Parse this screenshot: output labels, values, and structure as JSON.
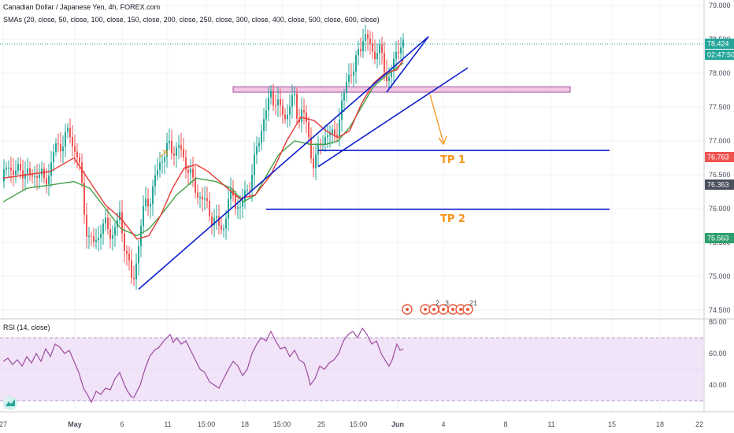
{
  "header": {
    "symbol": "Canadian Dollar / Japanese Yen, 4h, FOREX.com",
    "indicator": "SMAs (20, close, 50, close, 100, close, 150, close, 200, close, 250, close, 300, close, 400, close, 500, close, 600, close)"
  },
  "rsi_header": "RSI (14, close)",
  "price_tags": {
    "current": "78.424",
    "countdown": "02:47:50",
    "red": "76.763",
    "dark": "76.363",
    "green": "75.563"
  },
  "colors": {
    "candle_up": "#26a69a",
    "candle_down": "#ef5350",
    "sma_fast": "#e53935",
    "sma_slow": "#43a047",
    "trendline": "#0d1ecc",
    "zone": "#f3c6e4",
    "tp_label": "#f7941d",
    "rsi_line": "#9c4d9e",
    "rsi_band": "#f1e3f8"
  },
  "chart_data": [
    {
      "type": "candlestick",
      "title": "Canadian Dollar / Japanese Yen, 4h, FOREX.com",
      "y_ticks": [
        "79.000",
        "78.500",
        "78.000",
        "77.500",
        "77.000",
        "76.500",
        "76.000",
        "75.500",
        "75.000",
        "74.500"
      ],
      "x_ticks": [
        "27",
        "May",
        "6",
        "11",
        "15:00",
        "18",
        "15:00",
        "25",
        "15:00",
        "Jun",
        "4",
        "8",
        "11",
        "15",
        "18",
        "22"
      ],
      "ylim": [
        74.45,
        79.1
      ],
      "grid": true,
      "annotations": [
        "TP 1",
        "TP 2"
      ],
      "close_path": [
        [
          0,
          76.4
        ],
        [
          6,
          76.7
        ],
        [
          14,
          76.5
        ],
        [
          24,
          76.6
        ],
        [
          34,
          76.45
        ],
        [
          44,
          76.55
        ],
        [
          52,
          76.4
        ],
        [
          60,
          76.6
        ],
        [
          66,
          76.9
        ],
        [
          72,
          76.95
        ],
        [
          78,
          77.0
        ],
        [
          84,
          77.15
        ],
        [
          90,
          76.9
        ],
        [
          96,
          76.7
        ],
        [
          102,
          76.1
        ],
        [
          106,
          75.7
        ],
        [
          110,
          75.5
        ],
        [
          116,
          75.5
        ],
        [
          124,
          75.7
        ],
        [
          132,
          75.75
        ],
        [
          140,
          75.6
        ],
        [
          148,
          75.9
        ],
        [
          152,
          75.6
        ],
        [
          156,
          75.4
        ],
        [
          160,
          75.1
        ],
        [
          164,
          74.9
        ],
        [
          170,
          75.3
        ],
        [
          176,
          75.8
        ],
        [
          182,
          76.2
        ],
        [
          188,
          76.1
        ],
        [
          194,
          76.5
        ],
        [
          200,
          76.75
        ],
        [
          206,
          76.8
        ],
        [
          212,
          76.95
        ],
        [
          218,
          76.85
        ],
        [
          224,
          76.9
        ],
        [
          230,
          76.7
        ],
        [
          236,
          76.6
        ],
        [
          242,
          76.3
        ],
        [
          250,
          76.2
        ],
        [
          258,
          76.05
        ],
        [
          264,
          75.9
        ],
        [
          270,
          75.8
        ],
        [
          276,
          75.7
        ],
        [
          280,
          75.75
        ],
        [
          286,
          76.1
        ],
        [
          292,
          76.2
        ],
        [
          298,
          76.05
        ],
        [
          302,
          75.95
        ],
        [
          306,
          76.2
        ],
        [
          312,
          76.35
        ],
        [
          318,
          76.6
        ],
        [
          324,
          77.0
        ],
        [
          330,
          77.3
        ],
        [
          336,
          77.5
        ],
        [
          340,
          77.7
        ],
        [
          346,
          77.6
        ],
        [
          352,
          77.45
        ],
        [
          358,
          77.35
        ],
        [
          364,
          77.55
        ],
        [
          370,
          77.6
        ],
        [
          374,
          77.35
        ],
        [
          380,
          77.45
        ],
        [
          386,
          77.2
        ],
        [
          390,
          76.85
        ],
        [
          394,
          76.7
        ],
        [
          398,
          76.75
        ],
        [
          404,
          77.0
        ],
        [
          410,
          77.1
        ],
        [
          416,
          77.05
        ],
        [
          420,
          77.1
        ],
        [
          426,
          77.25
        ],
        [
          432,
          77.6
        ],
        [
          436,
          77.9
        ],
        [
          440,
          78.05
        ],
        [
          446,
          78.0
        ],
        [
          452,
          78.4
        ],
        [
          458,
          78.55
        ],
        [
          464,
          78.45
        ],
        [
          470,
          78.3
        ],
        [
          476,
          78.35
        ],
        [
          482,
          78.2
        ],
        [
          488,
          77.9
        ],
        [
          494,
          78.05
        ],
        [
          500,
          78.3
        ],
        [
          504,
          78.5
        ],
        [
          508,
          78.42
        ]
      ],
      "sma_fast": [
        [
          0,
          76.45
        ],
        [
          30,
          76.5
        ],
        [
          60,
          76.55
        ],
        [
          90,
          76.75
        ],
        [
          110,
          76.4
        ],
        [
          130,
          76.05
        ],
        [
          150,
          75.85
        ],
        [
          170,
          75.55
        ],
        [
          185,
          75.6
        ],
        [
          200,
          75.9
        ],
        [
          215,
          76.3
        ],
        [
          230,
          76.6
        ],
        [
          245,
          76.65
        ],
        [
          260,
          76.55
        ],
        [
          280,
          76.35
        ],
        [
          300,
          76.15
        ],
        [
          320,
          76.2
        ],
        [
          340,
          76.5
        ],
        [
          360,
          77.0
        ],
        [
          378,
          77.35
        ],
        [
          395,
          77.3
        ],
        [
          410,
          77.15
        ],
        [
          425,
          77.05
        ],
        [
          440,
          77.15
        ],
        [
          455,
          77.55
        ],
        [
          470,
          77.85
        ],
        [
          485,
          78.0
        ],
        [
          500,
          78.05
        ],
        [
          508,
          78.2
        ]
      ],
      "sma_slow": [
        [
          0,
          76.1
        ],
        [
          30,
          76.3
        ],
        [
          60,
          76.35
        ],
        [
          90,
          76.4
        ],
        [
          110,
          76.3
        ],
        [
          130,
          76.0
        ],
        [
          150,
          75.7
        ],
        [
          170,
          75.6
        ],
        [
          185,
          75.7
        ],
        [
          200,
          75.9
        ],
        [
          220,
          76.2
        ],
        [
          245,
          76.45
        ],
        [
          270,
          76.4
        ],
        [
          290,
          76.3
        ],
        [
          305,
          76.1
        ],
        [
          320,
          76.2
        ],
        [
          335,
          76.5
        ],
        [
          350,
          76.8
        ],
        [
          370,
          77.0
        ],
        [
          390,
          76.95
        ],
        [
          410,
          76.95
        ],
        [
          425,
          77.0
        ],
        [
          440,
          77.2
        ],
        [
          455,
          77.5
        ],
        [
          470,
          77.8
        ],
        [
          490,
          78.0
        ],
        [
          508,
          78.15
        ]
      ],
      "trendlines": [
        {
          "from": [
            172,
            74.81
          ],
          "to": [
            540,
            78.54
          ]
        },
        {
          "from": [
            400,
            76.62
          ],
          "to": [
            590,
            78.08
          ]
        },
        {
          "from": [
            487,
            77.72
          ],
          "to": [
            540,
            78.54
          ]
        }
      ],
      "resistance_zone": {
        "x_from": 292,
        "x_to": 720,
        "y_low": 77.72,
        "y_high": 77.8
      },
      "tp1": {
        "x_from": 400,
        "x_to": 770,
        "y": 76.86
      },
      "tp2": {
        "x_from": 334,
        "x_to": 770,
        "y": 75.99
      }
    },
    {
      "type": "line",
      "title": "RSI (14, close)",
      "y_ticks": [
        "80.00",
        "60.00",
        "40.00"
      ],
      "ylim": [
        22,
        82
      ],
      "band": [
        30,
        70
      ],
      "values": [
        [
          0,
          55
        ],
        [
          6,
          57
        ],
        [
          12,
          53
        ],
        [
          18,
          56
        ],
        [
          24,
          52
        ],
        [
          30,
          58
        ],
        [
          36,
          54
        ],
        [
          42,
          60
        ],
        [
          48,
          55
        ],
        [
          54,
          63
        ],
        [
          60,
          58
        ],
        [
          66,
          66
        ],
        [
          72,
          64
        ],
        [
          78,
          60
        ],
        [
          84,
          62
        ],
        [
          90,
          55
        ],
        [
          96,
          48
        ],
        [
          102,
          38
        ],
        [
          108,
          33
        ],
        [
          112,
          29
        ],
        [
          118,
          36
        ],
        [
          124,
          34
        ],
        [
          130,
          38
        ],
        [
          136,
          37
        ],
        [
          142,
          44
        ],
        [
          148,
          48
        ],
        [
          154,
          40
        ],
        [
          158,
          36
        ],
        [
          162,
          33
        ],
        [
          166,
          32
        ],
        [
          170,
          36
        ],
        [
          174,
          40
        ],
        [
          180,
          50
        ],
        [
          186,
          58
        ],
        [
          192,
          62
        ],
        [
          198,
          64
        ],
        [
          204,
          68
        ],
        [
          208,
          70
        ],
        [
          212,
          72
        ],
        [
          216,
          67
        ],
        [
          220,
          70
        ],
        [
          226,
          66
        ],
        [
          232,
          68
        ],
        [
          238,
          62
        ],
        [
          244,
          56
        ],
        [
          250,
          50
        ],
        [
          256,
          48
        ],
        [
          262,
          42
        ],
        [
          268,
          40
        ],
        [
          274,
          38
        ],
        [
          280,
          44
        ],
        [
          286,
          50
        ],
        [
          292,
          55
        ],
        [
          298,
          52
        ],
        [
          304,
          46
        ],
        [
          310,
          50
        ],
        [
          316,
          60
        ],
        [
          322,
          66
        ],
        [
          328,
          70
        ],
        [
          334,
          68
        ],
        [
          340,
          74
        ],
        [
          346,
          68
        ],
        [
          352,
          63
        ],
        [
          358,
          64
        ],
        [
          364,
          58
        ],
        [
          370,
          62
        ],
        [
          376,
          56
        ],
        [
          382,
          54
        ],
        [
          386,
          48
        ],
        [
          390,
          40
        ],
        [
          396,
          44
        ],
        [
          402,
          52
        ],
        [
          408,
          50
        ],
        [
          414,
          54
        ],
        [
          420,
          56
        ],
        [
          426,
          60
        ],
        [
          432,
          68
        ],
        [
          438,
          72
        ],
        [
          444,
          74
        ],
        [
          450,
          70
        ],
        [
          456,
          76
        ],
        [
          462,
          72
        ],
        [
          468,
          66
        ],
        [
          474,
          68
        ],
        [
          480,
          60
        ],
        [
          486,
          55
        ],
        [
          490,
          52
        ],
        [
          494,
          56
        ],
        [
          500,
          66
        ],
        [
          504,
          62
        ],
        [
          508,
          63
        ]
      ]
    }
  ]
}
